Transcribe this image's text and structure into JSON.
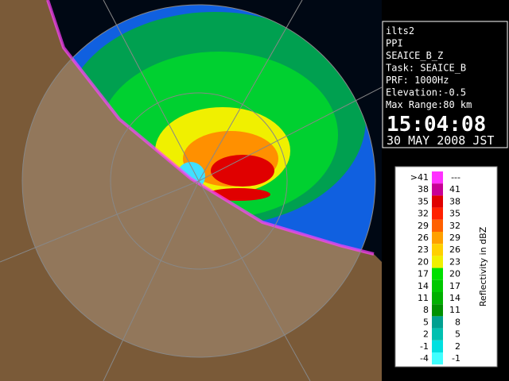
{
  "info": {
    "lines": [
      "ilts2",
      "PPI",
      "SEAICE_B_Z",
      "Task: SEAICE_B",
      "PRF: 1000Hz",
      "Elevation:-0.5",
      "Max Range:80 km"
    ],
    "time": "15:04:08",
    "date": "30 MAY 2008 JST"
  },
  "legend": {
    "title": "Reflectivity in dBZ",
    "rows": [
      {
        "low": ">41",
        "high": "---",
        "color": "#ff30ff"
      },
      {
        "low": "38",
        "high": "41",
        "color": "#c80096"
      },
      {
        "low": "35",
        "high": "38",
        "color": "#e00000"
      },
      {
        "low": "32",
        "high": "35",
        "color": "#ff2000"
      },
      {
        "low": "29",
        "high": "32",
        "color": "#ff6000"
      },
      {
        "low": "26",
        "high": "29",
        "color": "#ffa000"
      },
      {
        "low": "23",
        "high": "26",
        "color": "#ffd000"
      },
      {
        "low": "20",
        "high": "23",
        "color": "#f0f000"
      },
      {
        "low": "17",
        "high": "20",
        "color": "#00e000"
      },
      {
        "low": "14",
        "high": "17",
        "color": "#00c800"
      },
      {
        "low": "11",
        "high": "14",
        "color": "#00b000"
      },
      {
        "low": "8",
        "high": "11",
        "color": "#009000"
      },
      {
        "low": "5",
        "high": "8",
        "color": "#00a090"
      },
      {
        "low": "2",
        "high": "5",
        "color": "#00c0b0"
      },
      {
        "low": "-1",
        "high": "2",
        "color": "#00e0e0"
      },
      {
        "low": "-4",
        "high": "-1",
        "color": "#40ffff"
      }
    ]
  }
}
